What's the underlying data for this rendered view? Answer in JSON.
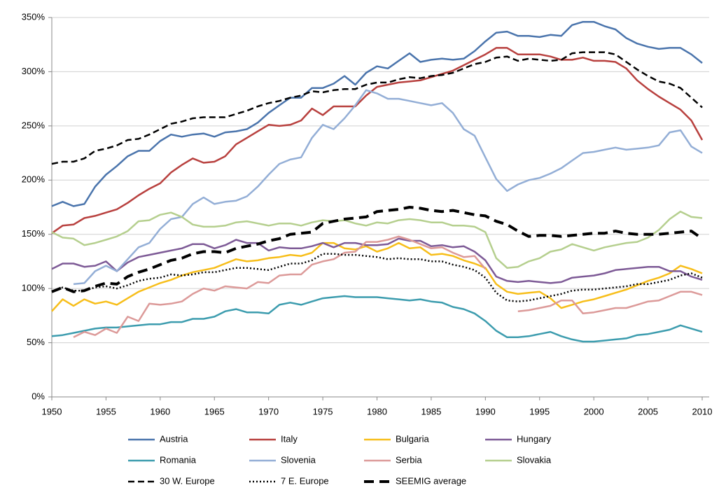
{
  "chart_data": {
    "type": "line",
    "x": [
      1950,
      1951,
      1952,
      1953,
      1954,
      1955,
      1956,
      1957,
      1958,
      1959,
      1960,
      1961,
      1962,
      1963,
      1964,
      1965,
      1966,
      1967,
      1968,
      1969,
      1970,
      1971,
      1972,
      1973,
      1974,
      1975,
      1976,
      1977,
      1978,
      1979,
      1980,
      1981,
      1982,
      1983,
      1984,
      1985,
      1986,
      1987,
      1988,
      1989,
      1990,
      1991,
      1992,
      1993,
      1994,
      1995,
      1996,
      1997,
      1998,
      1999,
      2000,
      2001,
      2002,
      2003,
      2004,
      2005,
      2006,
      2007,
      2008,
      2009,
      2010
    ],
    "xlim": [
      1950,
      2010
    ],
    "xticks": [
      1950,
      1955,
      1960,
      1965,
      1970,
      1975,
      1980,
      1985,
      1990,
      1995,
      2000,
      2005,
      2010
    ],
    "ylim": [
      0,
      350
    ],
    "yticks": [
      {
        "value": 0,
        "label": "0%"
      },
      {
        "value": 50,
        "label": "50%"
      },
      {
        "value": 100,
        "label": "100%"
      },
      {
        "value": 150,
        "label": "150%"
      },
      {
        "value": 200,
        "label": "200%"
      },
      {
        "value": 250,
        "label": "250%"
      },
      {
        "value": 300,
        "label": "300%"
      },
      {
        "value": 350,
        "label": "350%"
      }
    ],
    "grid": true,
    "series": [
      {
        "name": "Austria",
        "color": "#4a74ac",
        "style": "solid",
        "values": [
          176,
          180,
          176,
          178,
          194,
          205,
          213,
          222,
          227,
          227,
          236,
          242,
          240,
          242,
          243,
          240,
          244,
          245,
          247,
          253,
          262,
          269,
          276,
          276,
          285,
          285,
          289,
          296,
          288,
          299,
          305,
          303,
          310,
          317,
          309,
          311,
          312,
          311,
          312,
          319,
          328,
          336,
          337,
          333,
          333,
          332,
          334,
          333,
          343,
          346,
          346,
          342,
          339,
          331,
          326,
          323,
          321,
          322,
          322,
          316,
          308
        ]
      },
      {
        "name": "Italy",
        "color": "#b8403e",
        "style": "solid",
        "values": [
          151,
          158,
          159,
          165,
          167,
          170,
          173,
          179,
          186,
          192,
          197,
          207,
          214,
          220,
          216,
          217,
          222,
          233,
          239,
          245,
          251,
          250,
          251,
          255,
          266,
          260,
          268,
          268,
          268,
          278,
          286,
          288,
          290,
          291,
          292,
          295,
          298,
          301,
          306,
          311,
          316,
          322,
          322,
          316,
          316,
          316,
          314,
          311,
          311,
          313,
          310,
          310,
          309,
          303,
          292,
          284,
          277,
          271,
          265,
          255,
          237
        ]
      },
      {
        "name": "Bulgaria",
        "color": "#f7be1a",
        "style": "solid",
        "values": [
          79,
          90,
          84,
          90,
          86,
          88,
          85,
          91,
          97,
          101,
          105,
          108,
          112,
          115,
          117,
          119,
          123,
          127,
          125,
          126,
          128,
          129,
          131,
          130,
          133,
          142,
          142,
          137,
          136,
          139,
          134,
          137,
          142,
          137,
          138,
          131,
          132,
          130,
          126,
          123,
          119,
          104,
          97,
          95,
          96,
          97,
          91,
          82,
          85,
          88,
          90,
          93,
          96,
          99,
          103,
          107,
          110,
          114,
          121,
          118,
          114
        ]
      },
      {
        "name": "Hungary",
        "color": "#7d5a96",
        "style": "solid",
        "values": [
          118,
          123,
          123,
          120,
          121,
          125,
          116,
          124,
          129,
          131,
          133,
          135,
          137,
          141,
          141,
          137,
          140,
          145,
          142,
          142,
          135,
          138,
          137,
          137,
          139,
          142,
          138,
          142,
          142,
          140,
          140,
          141,
          146,
          144,
          144,
          139,
          140,
          138,
          139,
          134,
          126,
          111,
          107,
          106,
          107,
          106,
          105,
          106,
          110,
          111,
          112,
          114,
          117,
          118,
          119,
          120,
          120,
          116,
          116,
          111,
          108
        ]
      },
      {
        "name": "Romania",
        "color": "#3c9cae",
        "style": "solid",
        "values": [
          56,
          57,
          59,
          61,
          63,
          64,
          64,
          65,
          66,
          67,
          67,
          69,
          69,
          72,
          72,
          74,
          79,
          81,
          78,
          78,
          77,
          85,
          87,
          85,
          88,
          91,
          92,
          93,
          92,
          92,
          92,
          91,
          90,
          89,
          90,
          88,
          87,
          83,
          81,
          77,
          70,
          61,
          55,
          55,
          56,
          58,
          60,
          56,
          53,
          51,
          51,
          52,
          53,
          54,
          57,
          58,
          60,
          62,
          66,
          63,
          60
        ]
      },
      {
        "name": "Slovenia",
        "color": "#93aed6",
        "style": "solid",
        "values": [
          null,
          null,
          104,
          105,
          116,
          121,
          116,
          127,
          138,
          142,
          155,
          164,
          166,
          178,
          184,
          178,
          180,
          181,
          185,
          194,
          205,
          215,
          219,
          221,
          239,
          251,
          247,
          257,
          269,
          283,
          280,
          275,
          275,
          273,
          271,
          269,
          271,
          262,
          247,
          241,
          221,
          201,
          190,
          196,
          200,
          202,
          206,
          211,
          218,
          225,
          226,
          228,
          230,
          228,
          229,
          230,
          232,
          244,
          246,
          231,
          225
        ]
      },
      {
        "name": "Serbia",
        "color": "#dc9a99",
        "style": "solid",
        "values": [
          null,
          null,
          55,
          60,
          57,
          63,
          59,
          74,
          70,
          86,
          85,
          86,
          88,
          95,
          100,
          98,
          102,
          101,
          100,
          106,
          105,
          112,
          113,
          113,
          122,
          125,
          127,
          133,
          134,
          143,
          143,
          145,
          148,
          145,
          141,
          137,
          138,
          133,
          129,
          130,
          118,
          null,
          null,
          79,
          80,
          82,
          84,
          89,
          89,
          77,
          78,
          80,
          82,
          82,
          85,
          88,
          89,
          93,
          97,
          97,
          94
        ]
      },
      {
        "name": "Slovakia",
        "color": "#b5cf8e",
        "style": "solid",
        "values": [
          152,
          147,
          146,
          140,
          142,
          145,
          148,
          153,
          162,
          163,
          168,
          170,
          166,
          159,
          157,
          157,
          158,
          161,
          162,
          160,
          158,
          160,
          160,
          158,
          161,
          163,
          162,
          163,
          160,
          158,
          161,
          160,
          163,
          164,
          163,
          161,
          161,
          158,
          158,
          157,
          152,
          128,
          119,
          120,
          125,
          128,
          134,
          136,
          141,
          138,
          135,
          138,
          140,
          142,
          143,
          147,
          154,
          164,
          171,
          166,
          165
        ]
      },
      {
        "name": "30 W. Europe",
        "color": "#000000",
        "style": "dashed",
        "values": [
          215,
          217,
          217,
          220,
          227,
          229,
          232,
          237,
          238,
          242,
          247,
          252,
          254,
          257,
          258,
          258,
          258,
          261,
          264,
          268,
          271,
          273,
          276,
          278,
          282,
          281,
          283,
          284,
          284,
          288,
          290,
          290,
          293,
          295,
          294,
          296,
          297,
          299,
          303,
          307,
          309,
          313,
          314,
          310,
          312,
          311,
          310,
          311,
          317,
          318,
          318,
          318,
          316,
          309,
          302,
          296,
          291,
          289,
          285,
          276,
          267
        ]
      },
      {
        "name": "7 E. Europe",
        "color": "#000000",
        "style": "dotted",
        "values": [
          97,
          101,
          98,
          98,
          101,
          102,
          100,
          103,
          107,
          109,
          110,
          113,
          112,
          113,
          115,
          115,
          117,
          119,
          119,
          118,
          117,
          120,
          123,
          123,
          126,
          132,
          132,
          131,
          131,
          130,
          129,
          127,
          128,
          127,
          127,
          125,
          125,
          122,
          120,
          117,
          110,
          96,
          89,
          88,
          89,
          91,
          93,
          95,
          98,
          99,
          99,
          100,
          101,
          102,
          104,
          104,
          106,
          108,
          112,
          114,
          110
        ]
      },
      {
        "name": "SEEMIG average",
        "color": "#000000",
        "style": "bold-dashed",
        "values": [
          97,
          101,
          97,
          98,
          102,
          105,
          104,
          111,
          115,
          118,
          122,
          126,
          128,
          132,
          134,
          134,
          133,
          137,
          139,
          141,
          144,
          146,
          150,
          151,
          152,
          160,
          162,
          164,
          165,
          166,
          171,
          172,
          173,
          175,
          174,
          172,
          171,
          172,
          170,
          168,
          167,
          162,
          159,
          153,
          148,
          149,
          149,
          148,
          149,
          150,
          151,
          151,
          153,
          151,
          150,
          150,
          150,
          151,
          152,
          153,
          146
        ]
      }
    ]
  }
}
